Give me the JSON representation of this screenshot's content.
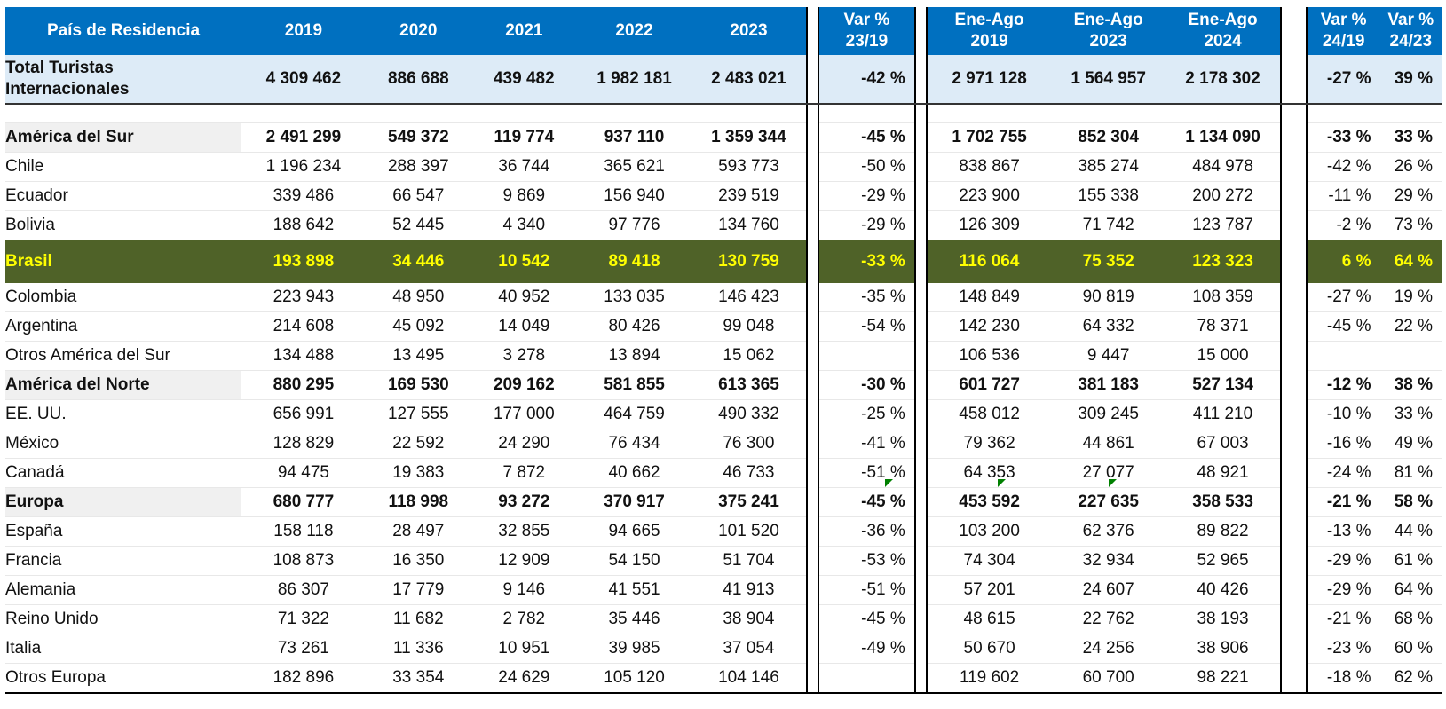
{
  "header": {
    "country_label": "País de Residencia",
    "years": [
      "2019",
      "2020",
      "2021",
      "2022",
      "2023"
    ],
    "var_a_line1": "Var %",
    "var_a_line2": "23/19",
    "period_cols": [
      {
        "l1": "Ene-Ago",
        "l2": "2019"
      },
      {
        "l1": "Ene-Ago",
        "l2": "2023"
      },
      {
        "l1": "Ene-Ago",
        "l2": "2024"
      }
    ],
    "var_b": [
      {
        "l1": "Var %",
        "l2": "24/19"
      },
      {
        "l1": "Var %",
        "l2": "24/23"
      }
    ]
  },
  "total": {
    "line1": "Total Turistas",
    "line2": "Internacionales",
    "years": [
      "4 309 462",
      "886 688",
      "439 482",
      "1 982 181",
      "2 483 021"
    ],
    "var_a": "-42 %",
    "period": [
      "2 971 128",
      "1 564 957",
      "2 178 302"
    ],
    "var_b": [
      "-27 %",
      "39 %"
    ]
  },
  "rows": [
    {
      "kind": "region",
      "name": "América del Sur",
      "years": [
        "2 491 299",
        "549 372",
        "119 774",
        "937 110",
        "1 359 344"
      ],
      "var_a": "-45 %",
      "period": [
        "1 702 755",
        "852 304",
        "1 134 090"
      ],
      "var_b": [
        "-33 %",
        "33 %"
      ]
    },
    {
      "kind": "item",
      "name": "Chile",
      "years": [
        "1 196 234",
        "288 397",
        "36 744",
        "365 621",
        "593 773"
      ],
      "var_a": "-50 %",
      "period": [
        "838 867",
        "385 274",
        "484 978"
      ],
      "var_b": [
        "-42 %",
        "26 %"
      ]
    },
    {
      "kind": "item",
      "name": "Ecuador",
      "years": [
        "339 486",
        "66 547",
        "9 869",
        "156 940",
        "239 519"
      ],
      "var_a": "-29 %",
      "period": [
        "223 900",
        "155 338",
        "200 272"
      ],
      "var_b": [
        "-11 %",
        "29 %"
      ]
    },
    {
      "kind": "item",
      "name": "Bolivia",
      "years": [
        "188 642",
        "52 445",
        "4 340",
        "97 776",
        "134 760"
      ],
      "var_a": "-29 %",
      "period": [
        "126 309",
        "71 742",
        "123 787"
      ],
      "var_b": [
        "-2 %",
        "73 %"
      ]
    },
    {
      "kind": "brasil",
      "name": "Brasil",
      "years": [
        "193 898",
        "34 446",
        "10 542",
        "89 418",
        "130 759"
      ],
      "var_a": "-33 %",
      "period": [
        "116 064",
        "75 352",
        "123 323"
      ],
      "var_b": [
        "6 %",
        "64 %"
      ]
    },
    {
      "kind": "item",
      "name": "Colombia",
      "years": [
        "223 943",
        "48 950",
        "40 952",
        "133 035",
        "146 423"
      ],
      "var_a": "-35 %",
      "period": [
        "148 849",
        "90 819",
        "108 359"
      ],
      "var_b": [
        "-27 %",
        "19 %"
      ]
    },
    {
      "kind": "item",
      "name": "Argentina",
      "years": [
        "214 608",
        "45 092",
        "14 049",
        "80 426",
        "99 048"
      ],
      "var_a": "-54 %",
      "period": [
        "142 230",
        "64 332",
        "78 371"
      ],
      "var_b": [
        "-45 %",
        "22 %"
      ]
    },
    {
      "kind": "item",
      "name": "Otros América del Sur",
      "years": [
        "134 488",
        "13 495",
        "3 278",
        "13 894",
        "15 062"
      ],
      "var_a": "",
      "period": [
        "106 536",
        "9 447",
        "15 000"
      ],
      "var_b": [
        "",
        ""
      ]
    },
    {
      "kind": "region",
      "name": "América del Norte",
      "years": [
        "880 295",
        "169 530",
        "209 162",
        "581 855",
        "613 365"
      ],
      "var_a": "-30 %",
      "period": [
        "601 727",
        "381 183",
        "527 134"
      ],
      "var_b": [
        "-12 %",
        "38 %"
      ]
    },
    {
      "kind": "item",
      "name": "EE. UU.",
      "years": [
        "656 991",
        "127 555",
        "177 000",
        "464 759",
        "490 332"
      ],
      "var_a": "-25 %",
      "period": [
        "458 012",
        "309 245",
        "411 210"
      ],
      "var_b": [
        "-10 %",
        "33 %"
      ]
    },
    {
      "kind": "item",
      "name": "México",
      "years": [
        "128 829",
        "22 592",
        "24 290",
        "76 434",
        "76 300"
      ],
      "var_a": "-41 %",
      "period": [
        "79 362",
        "44 861",
        "67 003"
      ],
      "var_b": [
        "-16 %",
        "49 %"
      ]
    },
    {
      "kind": "item",
      "name": "Canadá",
      "years": [
        "94 475",
        "19 383",
        "7 872",
        "40 662",
        "46 733"
      ],
      "var_a": "-51 %",
      "period": [
        "64 353",
        "27 077",
        "48 921"
      ],
      "var_b": [
        "-24 %",
        "81 %"
      ]
    },
    {
      "kind": "region",
      "name": "Europa",
      "years": [
        "680 777",
        "118 998",
        "93 272",
        "370 917",
        "375 241"
      ],
      "var_a": "-45 %",
      "period": [
        "453 592",
        "227 635",
        "358 533"
      ],
      "var_b": [
        "-21 %",
        "58 %"
      ]
    },
    {
      "kind": "item",
      "name": "España",
      "years": [
        "158 118",
        "28 497",
        "32 855",
        "94 665",
        "101 520"
      ],
      "var_a": "-36 %",
      "period": [
        "103 200",
        "62 376",
        "89 822"
      ],
      "var_b": [
        "-13 %",
        "44 %"
      ]
    },
    {
      "kind": "item",
      "name": "Francia",
      "years": [
        "108 873",
        "16 350",
        "12 909",
        "54 150",
        "51 704"
      ],
      "var_a": "-53 %",
      "period": [
        "74 304",
        "32 934",
        "52 965"
      ],
      "var_b": [
        "-29 %",
        "61 %"
      ]
    },
    {
      "kind": "item",
      "name": "Alemania",
      "years": [
        "86 307",
        "17 779",
        "9 146",
        "41 551",
        "41 913"
      ],
      "var_a": "-51 %",
      "period": [
        "57 201",
        "24 607",
        "40 426"
      ],
      "var_b": [
        "-29 %",
        "64 %"
      ]
    },
    {
      "kind": "item",
      "name": "Reino Unido",
      "years": [
        "71 322",
        "11 682",
        "2 782",
        "35 446",
        "38 904"
      ],
      "var_a": "-45 %",
      "period": [
        "48 615",
        "22 762",
        "38 193"
      ],
      "var_b": [
        "-21 %",
        "68 %"
      ]
    },
    {
      "kind": "item",
      "name": "Italia",
      "years": [
        "73 261",
        "11 336",
        "10 951",
        "39 985",
        "37 054"
      ],
      "var_a": "-49 %",
      "period": [
        "50 670",
        "24 256",
        "38 906"
      ],
      "var_b": [
        "-23 %",
        "60 %"
      ]
    },
    {
      "kind": "item",
      "name": "Otros Europa",
      "years": [
        "182 896",
        "33 354",
        "24 629",
        "105 120",
        "104 146"
      ],
      "var_a": "",
      "period": [
        "119 602",
        "60 700",
        "98 221"
      ],
      "var_b": [
        "-18 %",
        "62 %"
      ]
    }
  ],
  "colors": {
    "header_bg": "#0070c0",
    "total_bg": "#ddebf7",
    "brasil_bg": "#4f6228",
    "brasil_text": "#ffff00"
  }
}
